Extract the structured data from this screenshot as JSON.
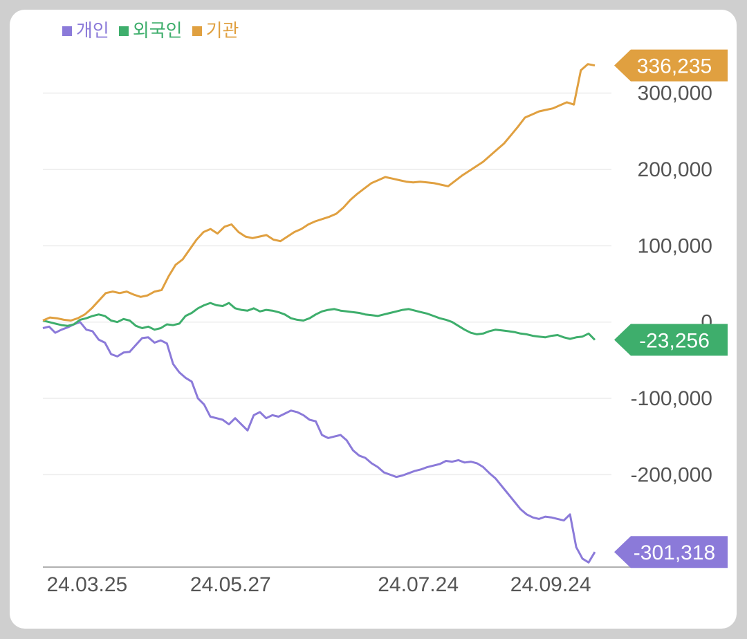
{
  "legend": [
    {
      "label": "개인",
      "color": "#8b7ad9"
    },
    {
      "label": "외국인",
      "color": "#3eae6c"
    },
    {
      "label": "기관",
      "color": "#e0a040"
    }
  ],
  "chart_data": {
    "type": "line",
    "ylim": [
      -312000,
      345000
    ],
    "yticks": [
      300000,
      200000,
      100000,
      0,
      -100000,
      -200000
    ],
    "ytick_labels": [
      "300,000",
      "200,000",
      "100,000",
      "0",
      "-100,000",
      "-200,000"
    ],
    "x_index_range": [
      0,
      100
    ],
    "xticks": [
      {
        "index": 8,
        "label": "24.03.25"
      },
      {
        "index": 34,
        "label": "24.05.27"
      },
      {
        "index": 68,
        "label": "24.07.24"
      },
      {
        "index": 92,
        "label": "24.09.24"
      }
    ],
    "grid": true,
    "legend_position": "top-left",
    "series": [
      {
        "name": "개인",
        "color": "#8b7ad9",
        "values": [
          -8000,
          -6000,
          -14000,
          -10000,
          -7000,
          -3000,
          0,
          -10000,
          -12000,
          -23000,
          -27000,
          -42000,
          -45000,
          -40000,
          -39000,
          -30000,
          -21000,
          -20000,
          -27000,
          -24000,
          -28000,
          -55000,
          -66000,
          -73000,
          -78000,
          -100000,
          -108000,
          -124000,
          -126000,
          -128000,
          -134000,
          -126000,
          -134000,
          -142000,
          -122000,
          -118000,
          -126000,
          -122000,
          -124000,
          -120000,
          -116000,
          -118000,
          -122000,
          -128000,
          -130000,
          -148000,
          -152000,
          -150000,
          -148000,
          -155000,
          -168000,
          -175000,
          -178000,
          -185000,
          -190000,
          -197000,
          -200000,
          -203000,
          -201000,
          -198000,
          -195000,
          -193000,
          -190000,
          -188000,
          -186000,
          -182000,
          -183000,
          -181000,
          -184000,
          -183000,
          -185000,
          -190000,
          -198000,
          -205000,
          -215000,
          -225000,
          -235000,
          -245000,
          -252000,
          -256000,
          -258000,
          -255000,
          -256000,
          -258000,
          -260000,
          -252000,
          -295000,
          -310000,
          -315000,
          -301318
        ]
      },
      {
        "name": "외국인",
        "color": "#3eae6c",
        "values": [
          2000,
          0,
          -2000,
          -4000,
          -5000,
          -3000,
          3000,
          5000,
          8000,
          10000,
          8000,
          2000,
          0,
          4000,
          2000,
          -5000,
          -8000,
          -6000,
          -10000,
          -8000,
          -3000,
          -4000,
          -2000,
          8000,
          12000,
          18000,
          22000,
          25000,
          22000,
          21000,
          25000,
          18000,
          16000,
          15000,
          18000,
          14000,
          16000,
          15000,
          13000,
          10000,
          5000,
          3000,
          2000,
          5000,
          10000,
          14000,
          16000,
          17000,
          15000,
          14000,
          13000,
          12000,
          10000,
          9000,
          8000,
          10000,
          12000,
          14000,
          16000,
          17000,
          15000,
          13000,
          11000,
          8000,
          5000,
          3000,
          0,
          -5000,
          -10000,
          -14000,
          -16000,
          -15000,
          -12000,
          -10000,
          -11000,
          -12000,
          -13000,
          -15000,
          -16000,
          -18000,
          -19000,
          -20000,
          -18000,
          -17000,
          -20000,
          -22000,
          -20000,
          -19000,
          -15000,
          -23256
        ]
      },
      {
        "name": "기관",
        "color": "#e0a040",
        "values": [
          2000,
          6000,
          5000,
          3000,
          2000,
          5000,
          10000,
          18000,
          28000,
          38000,
          40000,
          38000,
          40000,
          36000,
          33000,
          35000,
          40000,
          42000,
          60000,
          75000,
          82000,
          95000,
          108000,
          118000,
          122000,
          116000,
          125000,
          128000,
          118000,
          112000,
          110000,
          112000,
          114000,
          108000,
          106000,
          112000,
          118000,
          122000,
          128000,
          132000,
          135000,
          138000,
          142000,
          150000,
          160000,
          168000,
          175000,
          182000,
          186000,
          190000,
          188000,
          186000,
          184000,
          183000,
          184000,
          183000,
          182000,
          180000,
          178000,
          185000,
          192000,
          198000,
          204000,
          210000,
          218000,
          226000,
          234000,
          245000,
          256000,
          268000,
          272000,
          276000,
          278000,
          280000,
          284000,
          288000,
          285000,
          330000,
          338000,
          336235
        ]
      }
    ],
    "end_labels": [
      {
        "series": "기관",
        "label": "336,235",
        "color": "#e0a040"
      },
      {
        "series": "외국인",
        "label": "-23,256",
        "color": "#3eae6c"
      },
      {
        "series": "개인",
        "label": "-301,318",
        "color": "#8b7ad9"
      }
    ]
  }
}
